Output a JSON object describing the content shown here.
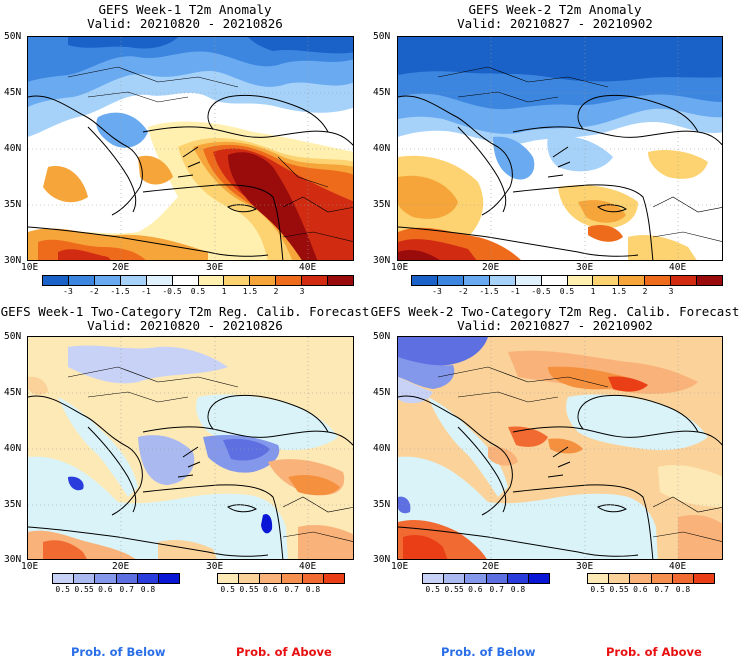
{
  "panels": {
    "p1": {
      "title1": "GEFS Week-1 T2m Anomaly",
      "title2": "Valid: 20210820 - 20210826"
    },
    "p2": {
      "title1": "GEFS Week-2 T2m Anomaly",
      "title2": "Valid: 20210827 - 20210902"
    },
    "p3": {
      "title1": "GEFS Week-1 Two-Category T2m Reg. Calib. Forecast",
      "title2": "Valid: 20210820 - 20210826"
    },
    "p4": {
      "title1": "GEFS Week-2 Two-Category T2m Reg. Calib. Forecast",
      "title2": "Valid: 20210827 - 20210902"
    }
  },
  "axes": {
    "lat_labels": [
      "50N",
      "45N",
      "40N",
      "35N",
      "30N"
    ],
    "lon_labels": [
      "10E",
      "20E",
      "30E",
      "40E"
    ]
  },
  "anomaly_colorbar": {
    "ticks": [
      "-3",
      "-2",
      "-1.5",
      "-1",
      "-0.5",
      "0.5",
      "1",
      "1.5",
      "2",
      "3"
    ],
    "colors": [
      "#1a62c8",
      "#3d86e0",
      "#6aaaf0",
      "#a6d2fa",
      "#e0f1fe",
      "#ffffff",
      "#fff0b0",
      "#fcd370",
      "#f5a53a",
      "#ee6b1c",
      "#d12c12",
      "#9a0c0c"
    ]
  },
  "prob_below_colorbar": {
    "ticks": [
      "0.5",
      "0.55",
      "0.6",
      "0.7",
      "0.8"
    ],
    "colors": [
      "#c8d2f6",
      "#aab9f0",
      "#8398ea",
      "#5e6fe2",
      "#2b3cdc",
      "#0a16d6"
    ]
  },
  "prob_above_colorbar": {
    "ticks": [
      "0.5",
      "0.55",
      "0.6",
      "0.7",
      "0.8"
    ],
    "colors": [
      "#fde9b6",
      "#fbd39a",
      "#f9b37a",
      "#f5904f",
      "#f06a32",
      "#ea3f16"
    ]
  },
  "legend": {
    "below_label": "Prob. of Below",
    "below_color": "#2a6fe8",
    "above_label": "Prob. of Above",
    "above_color": "#e81010"
  },
  "map_colors": {
    "sea_prob": "#d9f3f8"
  }
}
